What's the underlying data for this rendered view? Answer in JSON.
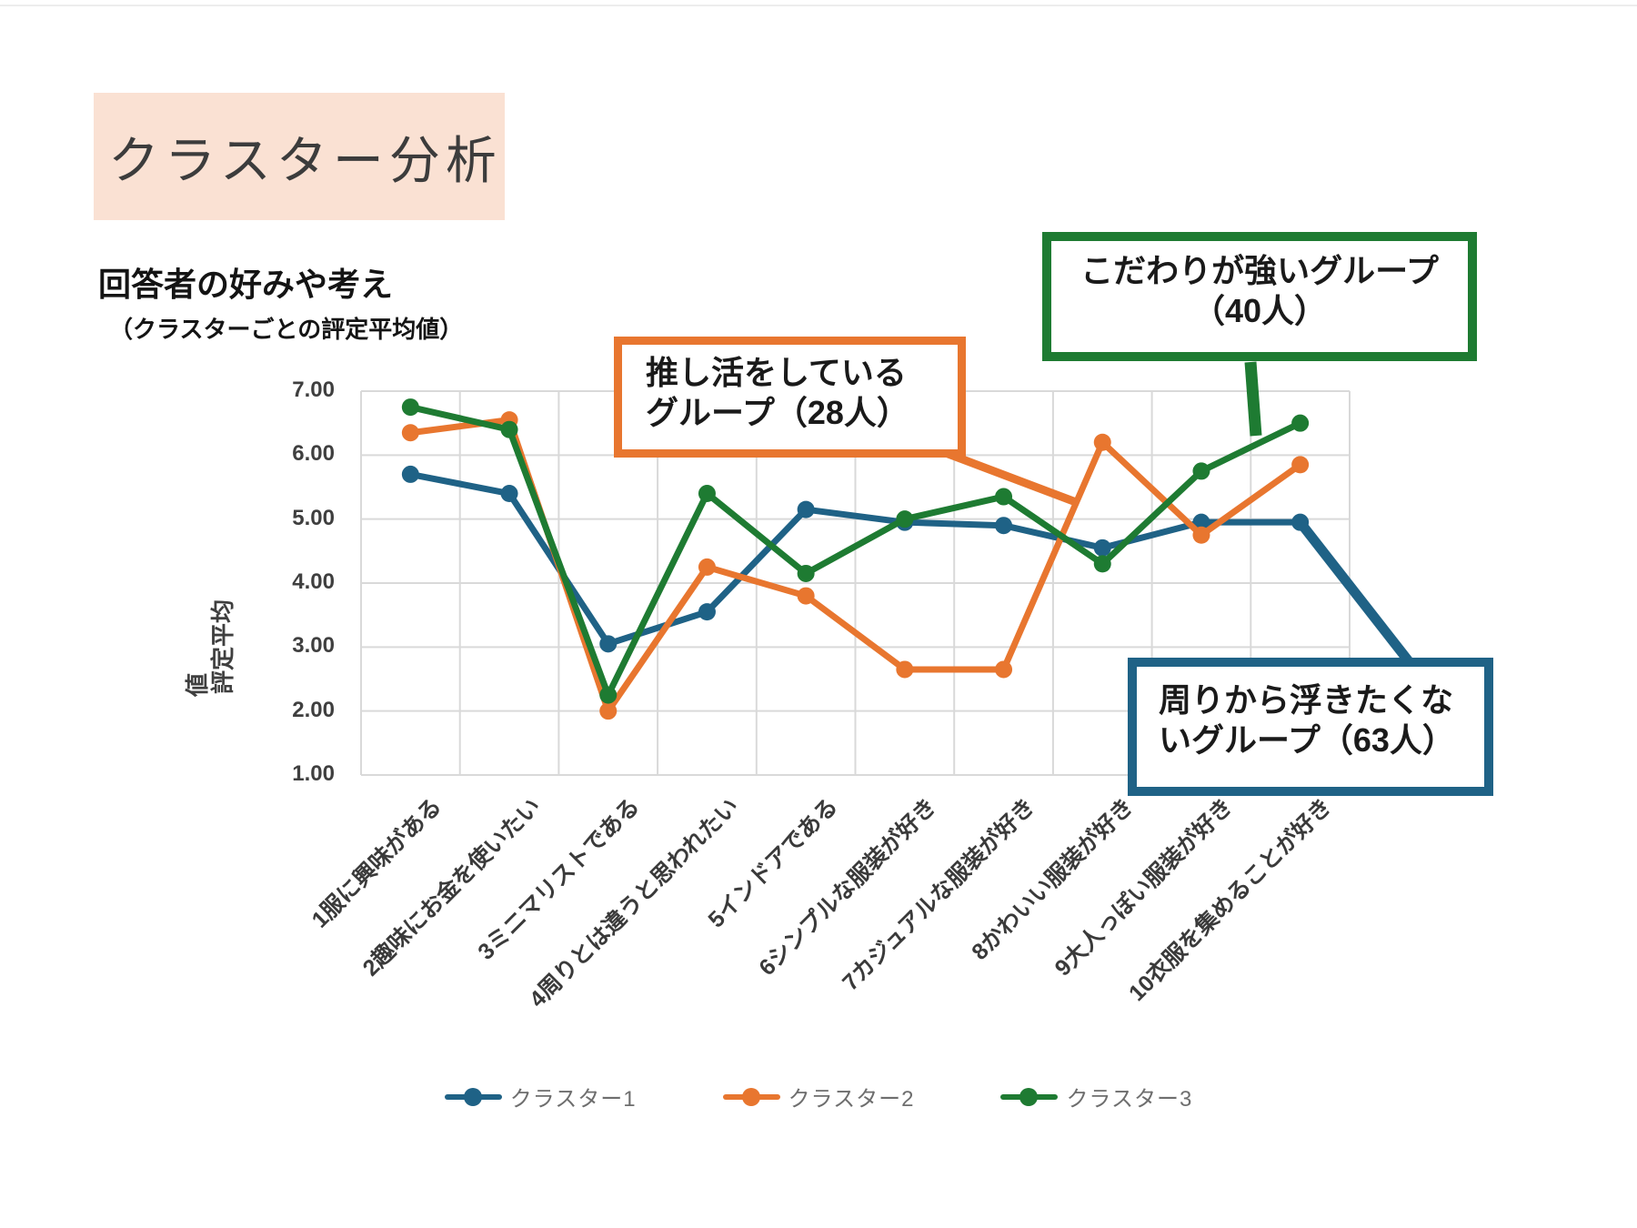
{
  "slide": {
    "title": "クラスター分析",
    "title_bg": "#FAE1D3"
  },
  "chart": {
    "heading": "回答者の好みや考え",
    "subheading": "（クラスターごとの評定平均値）",
    "y_axis_title_main": "評定平均",
    "y_axis_title_wrap": "値"
  },
  "chart_data": {
    "type": "line",
    "title": "回答者の好みや考え（クラスターごとの評定平均値）",
    "ylabel": "評定平均値",
    "xlabel": "",
    "ylim": [
      1.0,
      7.0
    ],
    "ytick_labels": [
      "7.00",
      "6.00",
      "5.00",
      "4.00",
      "3.00",
      "2.00",
      "1.00"
    ],
    "grid": true,
    "legend_position": "bottom",
    "categories": [
      "1服に興味がある",
      "2趣味にお金を使いたい",
      "3ミニマリストである",
      "4周りとは違うと思われたい",
      "5インドアである",
      "6シンプルな服装が好き",
      "7カジュアルな服装が好き",
      "8かわいい服装が好き",
      "9大人っぽい服装が好き",
      "10衣服を集めることが好き"
    ],
    "series": [
      {
        "name": "クラスター1",
        "color": "#1F6286",
        "values": [
          5.7,
          5.4,
          3.05,
          3.55,
          5.15,
          4.95,
          4.9,
          4.55,
          4.95,
          4.95
        ]
      },
      {
        "name": "クラスター2",
        "color": "#E8762F",
        "values": [
          6.35,
          6.55,
          2.0,
          4.25,
          3.8,
          2.65,
          2.65,
          6.2,
          4.75,
          5.85
        ]
      },
      {
        "name": "クラスター3",
        "color": "#1E7B32",
        "values": [
          6.75,
          6.4,
          2.25,
          5.4,
          4.15,
          5.0,
          5.35,
          4.3,
          5.75,
          6.5
        ]
      }
    ]
  },
  "annotations": [
    {
      "line1": "推し活をしている",
      "line2": "グループ（28人）",
      "color": "#E8762F"
    },
    {
      "line1": "こだわりが強いグループ",
      "line2": "（40人）",
      "color": "#1E7B32"
    },
    {
      "line1": "周りから浮きたくな",
      "line2": "いグループ（63人）",
      "color": "#1F6286"
    }
  ]
}
